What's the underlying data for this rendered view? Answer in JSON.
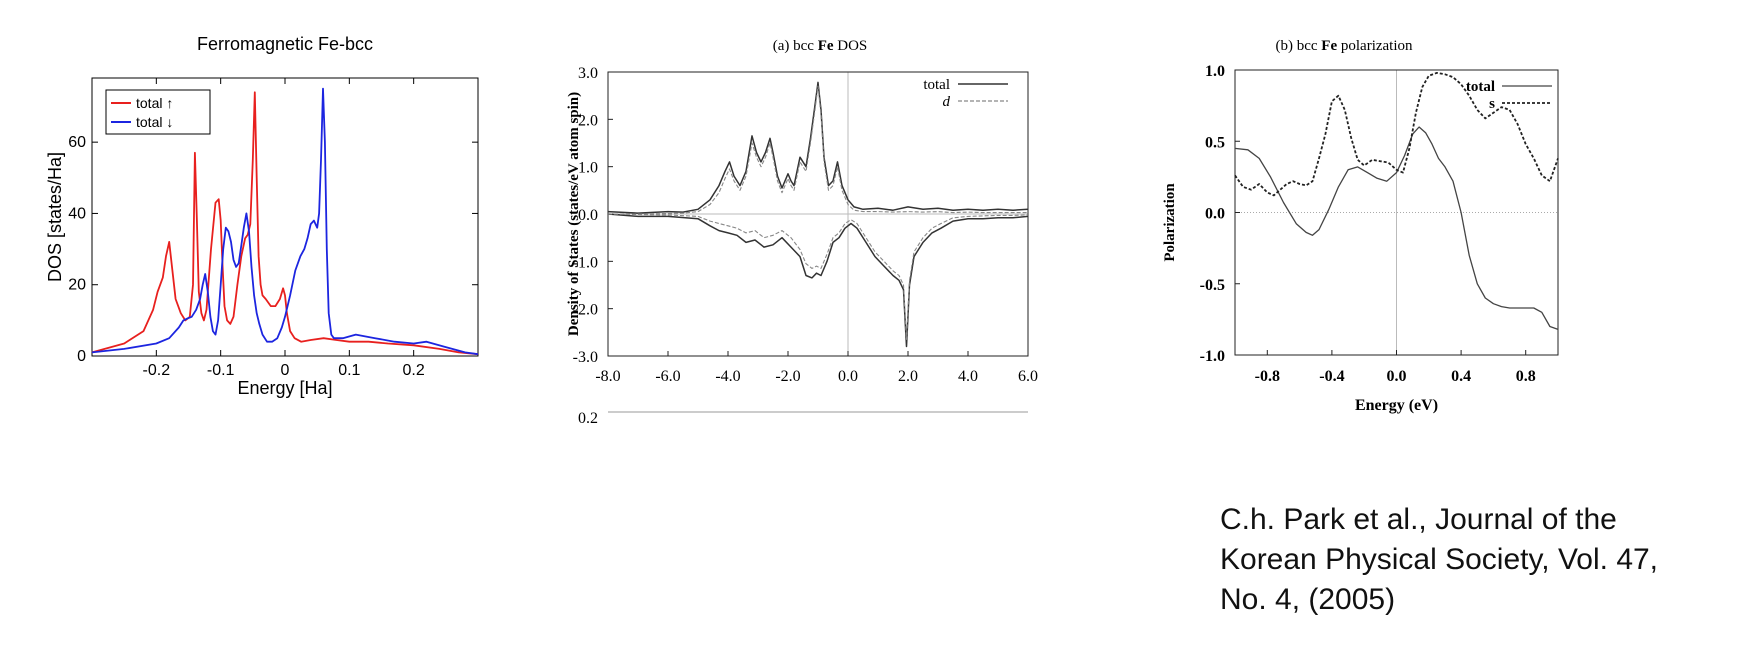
{
  "citation": {
    "lines": [
      "C.h. Park et al., Journal of the",
      "Korean Physical Society, Vol. 47,",
      "No. 4,  (2005)"
    ]
  },
  "chart_data": [
    {
      "type": "line",
      "title": "Ferromagnetic Fe-bcc",
      "xlabel": "Energy [Ha]",
      "ylabel": "DOS [states/Ha]",
      "xlim": [
        -0.3,
        0.3
      ],
      "ylim": [
        0,
        78
      ],
      "xticks": [
        -0.2,
        -0.1,
        0,
        0.1,
        0.2
      ],
      "xtick_labels": [
        "-0.2",
        "-0.1",
        "0",
        "0.1",
        "0.2"
      ],
      "yticks": [
        0,
        20,
        40,
        60
      ],
      "ytick_labels": [
        "0",
        "20",
        "40",
        "60"
      ],
      "grid": false,
      "legend_position": "top-left",
      "series": [
        {
          "name": "total ↑",
          "color": "#e8201e",
          "x": [
            -0.3,
            -0.25,
            -0.22,
            -0.205,
            -0.198,
            -0.19,
            -0.185,
            -0.18,
            -0.175,
            -0.17,
            -0.162,
            -0.155,
            -0.148,
            -0.143,
            -0.14,
            -0.137,
            -0.134,
            -0.13,
            -0.126,
            -0.122,
            -0.115,
            -0.108,
            -0.103,
            -0.1,
            -0.097,
            -0.094,
            -0.09,
            -0.085,
            -0.08,
            -0.074,
            -0.068,
            -0.062,
            -0.058,
            -0.054,
            -0.05,
            -0.047,
            -0.044,
            -0.041,
            -0.038,
            -0.035,
            -0.03,
            -0.022,
            -0.015,
            -0.008,
            -0.003,
            0.0,
            0.003,
            0.008,
            0.015,
            0.025,
            0.04,
            0.06,
            0.08,
            0.1,
            0.13,
            0.16,
            0.2,
            0.24,
            0.27,
            0.3
          ],
          "y": [
            1.0,
            3.5,
            7.0,
            13.0,
            18.0,
            22.0,
            28.0,
            32.0,
            24.0,
            16.0,
            12.0,
            10.0,
            11.0,
            20.0,
            57.0,
            38.0,
            18.0,
            12.0,
            10.0,
            13.0,
            30.0,
            43.0,
            44.0,
            38.0,
            25.0,
            14.0,
            10.0,
            9.0,
            11.0,
            20.0,
            28.0,
            33.0,
            34.0,
            37.0,
            55.0,
            74.0,
            50.0,
            28.0,
            20.0,
            17.0,
            16.0,
            14.0,
            14.0,
            16.0,
            19.0,
            17.0,
            12.0,
            7.0,
            5.0,
            4.0,
            4.5,
            5.0,
            4.5,
            4.0,
            4.0,
            3.5,
            3.0,
            2.0,
            1.0,
            0.5
          ]
        },
        {
          "name": "total ↓",
          "color": "#1c25e0",
          "x": [
            -0.3,
            -0.25,
            -0.2,
            -0.18,
            -0.165,
            -0.158,
            -0.152,
            -0.145,
            -0.138,
            -0.132,
            -0.128,
            -0.124,
            -0.12,
            -0.116,
            -0.112,
            -0.108,
            -0.104,
            -0.1,
            -0.096,
            -0.092,
            -0.088,
            -0.084,
            -0.08,
            -0.076,
            -0.072,
            -0.068,
            -0.064,
            -0.06,
            -0.056,
            -0.052,
            -0.048,
            -0.044,
            -0.04,
            -0.035,
            -0.028,
            -0.02,
            -0.012,
            -0.005,
            0.0,
            0.008,
            0.016,
            0.024,
            0.03,
            0.035,
            0.04,
            0.045,
            0.05,
            0.053,
            0.056,
            0.059,
            0.062,
            0.065,
            0.068,
            0.072,
            0.076,
            0.08,
            0.09,
            0.11,
            0.14,
            0.17,
            0.2,
            0.22,
            0.25,
            0.28,
            0.3
          ],
          "y": [
            1.0,
            2.0,
            3.5,
            5.0,
            8.0,
            10.0,
            10.5,
            11.0,
            13.0,
            16.0,
            20.0,
            23.0,
            18.0,
            11.0,
            7.0,
            6.0,
            10.0,
            20.0,
            30.0,
            36.0,
            35.0,
            32.0,
            27.0,
            25.0,
            26.0,
            31.0,
            36.0,
            40.0,
            35.0,
            25.0,
            17.0,
            12.0,
            9.0,
            6.0,
            4.0,
            4.0,
            5.0,
            8.0,
            11.0,
            17.0,
            24.0,
            28.0,
            30.0,
            33.0,
            37.0,
            38.0,
            36.0,
            40.0,
            55.0,
            75.0,
            60.0,
            30.0,
            12.0,
            6.0,
            5.0,
            5.0,
            5.0,
            6.0,
            5.0,
            4.0,
            3.5,
            4.0,
            2.5,
            1.0,
            0.5
          ]
        }
      ]
    },
    {
      "type": "line",
      "title": "(a) bcc Fe DOS",
      "title_prefix": "(a) bcc ",
      "title_bold": "Fe",
      "title_suffix": " DOS",
      "xlabel": "",
      "ylabel": "Density of States (states/eV atom spin)",
      "xlim": [
        -8.0,
        6.0
      ],
      "ylim": [
        -3.0,
        3.0
      ],
      "xticks": [
        -8.0,
        -6.0,
        -4.0,
        -2.0,
        0.0,
        2.0,
        4.0,
        6.0
      ],
      "xtick_labels": [
        "-8.0",
        "-6.0",
        "-4.0",
        "-2.0",
        "0.0",
        "2.0",
        "4.0",
        "6.0"
      ],
      "yticks": [
        3.0,
        2.0,
        1.0,
        0.0,
        -1.0,
        -2.0,
        -3.0
      ],
      "ytick_labels": [
        "3.0",
        "2.0",
        "1.0",
        "0.0",
        "-1.0",
        "-2.0",
        "-3.0"
      ],
      "cutoff_tick_label": "0.2",
      "grid": false,
      "legend_position": "top-right",
      "series": [
        {
          "name": "total",
          "color": "#333333",
          "dash": false,
          "x": [
            -8.0,
            -7.0,
            -6.0,
            -5.5,
            -5.0,
            -4.6,
            -4.3,
            -4.1,
            -3.95,
            -3.8,
            -3.6,
            -3.4,
            -3.2,
            -3.05,
            -2.9,
            -2.75,
            -2.6,
            -2.5,
            -2.35,
            -2.2,
            -2.0,
            -1.9,
            -1.8,
            -1.6,
            -1.4,
            -1.25,
            -1.1,
            -1.0,
            -0.9,
            -0.8,
            -0.65,
            -0.5,
            -0.35,
            -0.2,
            0.0,
            0.2,
            0.5,
            1.0,
            1.5,
            2.0,
            2.5,
            3.0,
            3.5,
            4.0,
            4.5,
            5.0,
            5.5,
            6.0
          ],
          "y": [
            0.05,
            0.02,
            0.05,
            0.04,
            0.1,
            0.3,
            0.6,
            0.9,
            1.1,
            0.8,
            0.6,
            0.9,
            1.65,
            1.3,
            1.1,
            1.3,
            1.6,
            1.3,
            0.8,
            0.55,
            0.85,
            0.7,
            0.6,
            1.2,
            1.0,
            1.6,
            2.3,
            2.78,
            2.2,
            1.2,
            0.6,
            0.7,
            1.1,
            0.6,
            0.3,
            0.15,
            0.1,
            0.12,
            0.08,
            0.15,
            0.1,
            0.12,
            0.08,
            0.1,
            0.08,
            0.1,
            0.08,
            0.1
          ]
        },
        {
          "name": "d",
          "color": "#888888",
          "dash": true,
          "x": [
            -8.0,
            -7.0,
            -6.0,
            -5.5,
            -5.0,
            -4.6,
            -4.3,
            -4.1,
            -3.95,
            -3.8,
            -3.6,
            -3.4,
            -3.2,
            -3.05,
            -2.9,
            -2.75,
            -2.6,
            -2.5,
            -2.35,
            -2.2,
            -2.0,
            -1.9,
            -1.8,
            -1.6,
            -1.4,
            -1.25,
            -1.1,
            -1.0,
            -0.9,
            -0.8,
            -0.65,
            -0.5,
            -0.35,
            -0.2,
            0.0,
            0.2,
            0.5,
            1.0,
            1.5,
            2.0,
            2.5,
            3.0,
            3.5,
            4.0,
            4.5,
            5.0,
            5.5,
            6.0
          ],
          "y": [
            0.0,
            0.0,
            0.01,
            0.02,
            0.05,
            0.2,
            0.45,
            0.75,
            0.95,
            0.7,
            0.5,
            0.8,
            1.5,
            1.2,
            1.0,
            1.2,
            1.5,
            1.2,
            0.7,
            0.45,
            0.75,
            0.6,
            0.5,
            1.1,
            0.9,
            1.5,
            2.2,
            2.7,
            2.1,
            1.1,
            0.5,
            0.6,
            1.0,
            0.5,
            0.2,
            0.08,
            0.05,
            0.05,
            0.04,
            0.05,
            0.04,
            0.05,
            0.03,
            0.04,
            0.03,
            0.03,
            0.03,
            0.03
          ]
        },
        {
          "name": "",
          "color": "#333333",
          "dash": false,
          "x": [
            -8.0,
            -7.0,
            -6.0,
            -5.0,
            -4.6,
            -4.3,
            -4.0,
            -3.7,
            -3.4,
            -3.1,
            -2.8,
            -2.5,
            -2.2,
            -1.9,
            -1.6,
            -1.4,
            -1.2,
            -1.05,
            -0.9,
            -0.7,
            -0.5,
            -0.3,
            -0.1,
            0.1,
            0.3,
            0.6,
            0.9,
            1.2,
            1.5,
            1.7,
            1.85,
            1.95,
            2.05,
            2.2,
            2.5,
            2.8,
            3.1,
            3.5,
            4.0,
            4.5,
            5.0,
            5.5,
            6.0
          ],
          "y": [
            0.0,
            -0.05,
            -0.05,
            -0.1,
            -0.25,
            -0.35,
            -0.4,
            -0.45,
            -0.6,
            -0.55,
            -0.7,
            -0.65,
            -0.5,
            -0.7,
            -0.9,
            -1.3,
            -1.35,
            -1.25,
            -1.3,
            -1.0,
            -0.6,
            -0.5,
            -0.3,
            -0.2,
            -0.3,
            -0.6,
            -0.9,
            -1.1,
            -1.3,
            -1.4,
            -1.6,
            -2.8,
            -1.5,
            -0.9,
            -0.6,
            -0.4,
            -0.3,
            -0.15,
            -0.1,
            -0.1,
            -0.08,
            -0.08,
            -0.05
          ]
        },
        {
          "name": "",
          "color": "#888888",
          "dash": true,
          "x": [
            -8.0,
            -7.0,
            -6.0,
            -5.0,
            -4.6,
            -4.3,
            -4.0,
            -3.7,
            -3.4,
            -3.1,
            -2.8,
            -2.5,
            -2.2,
            -1.9,
            -1.6,
            -1.4,
            -1.2,
            -1.05,
            -0.9,
            -0.7,
            -0.5,
            -0.3,
            -0.1,
            0.1,
            0.3,
            0.6,
            0.9,
            1.2,
            1.5,
            1.7,
            1.85,
            1.95,
            2.05,
            2.2,
            2.5,
            2.8,
            3.1,
            3.5,
            4.0,
            4.5,
            5.0,
            5.5,
            6.0
          ],
          "y": [
            0.0,
            -0.01,
            -0.02,
            -0.05,
            -0.15,
            -0.2,
            -0.25,
            -0.3,
            -0.4,
            -0.35,
            -0.5,
            -0.45,
            -0.35,
            -0.5,
            -0.75,
            -1.05,
            -1.15,
            -1.1,
            -1.15,
            -0.85,
            -0.5,
            -0.4,
            -0.2,
            -0.12,
            -0.2,
            -0.5,
            -0.8,
            -1.0,
            -1.2,
            -1.3,
            -1.5,
            -2.65,
            -1.4,
            -0.8,
            -0.5,
            -0.3,
            -0.2,
            -0.08,
            -0.05,
            -0.04,
            -0.03,
            -0.03,
            -0.02
          ]
        }
      ]
    },
    {
      "type": "line",
      "title": "(b) bcc Fe polarization",
      "title_prefix": "(b) bcc ",
      "title_bold": "Fe",
      "title_suffix": " polarization",
      "xlabel": "Energy (eV)",
      "ylabel": "Polarization",
      "xlim": [
        -1.0,
        1.0
      ],
      "ylim": [
        -1.0,
        1.0
      ],
      "xticks": [
        -0.8,
        -0.4,
        0.0,
        0.4,
        0.8
      ],
      "xtick_labels": [
        "-0.8",
        "-0.4",
        "0.0",
        "0.4",
        "0.8"
      ],
      "yticks": [
        1.0,
        0.5,
        0.0,
        -0.5,
        -1.0
      ],
      "ytick_labels": [
        "1.0",
        "0.5",
        "0.0",
        "-0.5",
        "-1.0"
      ],
      "grid": false,
      "legend_position": "top-right",
      "series": [
        {
          "name": "total",
          "color": "#444444",
          "dash": false,
          "x": [
            -1.0,
            -0.92,
            -0.85,
            -0.78,
            -0.7,
            -0.62,
            -0.56,
            -0.52,
            -0.48,
            -0.42,
            -0.36,
            -0.3,
            -0.24,
            -0.18,
            -0.12,
            -0.06,
            0.0,
            0.05,
            0.1,
            0.14,
            0.18,
            0.22,
            0.26,
            0.3,
            0.35,
            0.4,
            0.45,
            0.5,
            0.55,
            0.6,
            0.65,
            0.7,
            0.75,
            0.8,
            0.85,
            0.9,
            0.95,
            1.0
          ],
          "y": [
            0.45,
            0.44,
            0.38,
            0.25,
            0.07,
            -0.08,
            -0.14,
            -0.16,
            -0.12,
            0.02,
            0.18,
            0.3,
            0.32,
            0.28,
            0.24,
            0.22,
            0.28,
            0.4,
            0.55,
            0.6,
            0.56,
            0.48,
            0.38,
            0.32,
            0.22,
            0.0,
            -0.3,
            -0.5,
            -0.6,
            -0.64,
            -0.66,
            -0.67,
            -0.67,
            -0.67,
            -0.67,
            -0.7,
            -0.8,
            -0.82
          ]
        },
        {
          "name": "s",
          "color": "#222222",
          "dash": true,
          "x": [
            -1.0,
            -0.95,
            -0.9,
            -0.85,
            -0.8,
            -0.76,
            -0.72,
            -0.68,
            -0.64,
            -0.6,
            -0.56,
            -0.52,
            -0.48,
            -0.44,
            -0.4,
            -0.36,
            -0.32,
            -0.28,
            -0.24,
            -0.2,
            -0.15,
            -0.1,
            -0.05,
            0.0,
            0.04,
            0.08,
            0.12,
            0.16,
            0.2,
            0.25,
            0.3,
            0.35,
            0.4,
            0.45,
            0.5,
            0.55,
            0.6,
            0.65,
            0.7,
            0.75,
            0.8,
            0.85,
            0.9,
            0.95,
            1.0
          ],
          "y": [
            0.26,
            0.18,
            0.16,
            0.2,
            0.14,
            0.12,
            0.16,
            0.2,
            0.22,
            0.2,
            0.19,
            0.22,
            0.38,
            0.55,
            0.78,
            0.82,
            0.72,
            0.52,
            0.37,
            0.33,
            0.37,
            0.36,
            0.35,
            0.3,
            0.28,
            0.45,
            0.7,
            0.88,
            0.96,
            0.98,
            0.97,
            0.95,
            0.9,
            0.82,
            0.72,
            0.66,
            0.7,
            0.74,
            0.72,
            0.62,
            0.48,
            0.38,
            0.26,
            0.22,
            0.38
          ]
        }
      ]
    }
  ]
}
